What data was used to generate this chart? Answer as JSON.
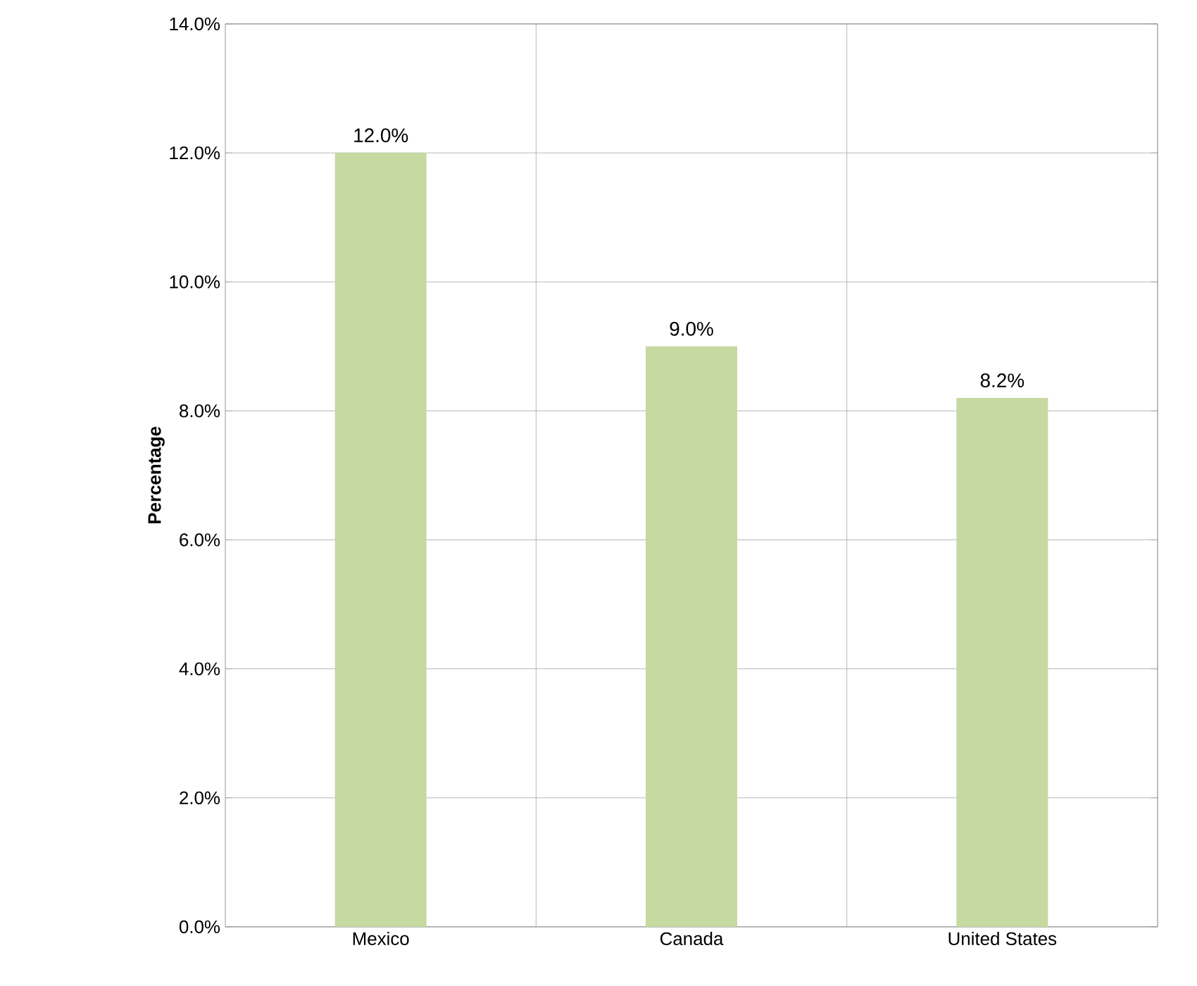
{
  "chart_data": {
    "type": "bar",
    "ylabel": "Percentage",
    "categories": [
      "Mexico",
      "Canada",
      "United States"
    ],
    "values": [
      12.0,
      9.0,
      8.2
    ],
    "value_labels": [
      "12.0%",
      "9.0%",
      "8.2%"
    ],
    "color": "#c6d9a0",
    "ylim": [
      0,
      14
    ],
    "yticks": [
      {
        "value": 0,
        "label": "0.0%"
      },
      {
        "value": 2,
        "label": "2.0%"
      },
      {
        "value": 4,
        "label": "4.0%"
      },
      {
        "value": 6,
        "label": "6.0%"
      },
      {
        "value": 8,
        "label": "8.0%"
      },
      {
        "value": 10,
        "label": "10.0%"
      },
      {
        "value": 12,
        "label": "12.0%"
      },
      {
        "value": 14,
        "label": "14.0%"
      }
    ],
    "grid": true
  }
}
